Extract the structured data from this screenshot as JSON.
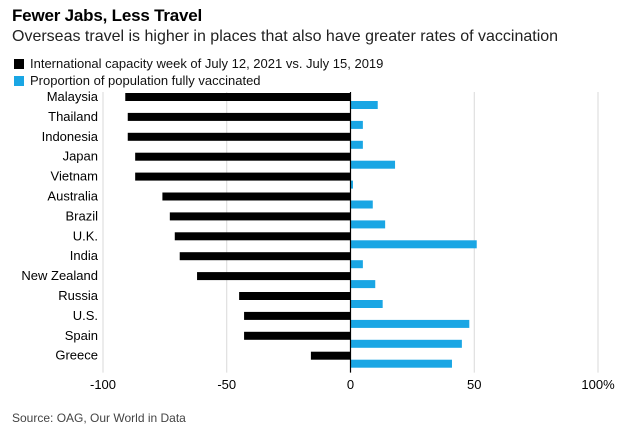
{
  "title": "Fewer Jabs, Less Travel",
  "subtitle": "Overseas travel is higher in places that also have greater rates of vaccination",
  "source": "Source: OAG, Our World in Data",
  "colors": {
    "capacity": "#000000",
    "vaccinated": "#1aa6e4",
    "grid": "#d9d9d9",
    "axis": "#000000"
  },
  "chart_data": {
    "type": "bar",
    "orientation": "horizontal",
    "categories": [
      "Malaysia",
      "Thailand",
      "Indonesia",
      "Japan",
      "Vietnam",
      "Australia",
      "Brazil",
      "U.K.",
      "India",
      "New Zealand",
      "Russia",
      "U.S.",
      "Spain",
      "Greece"
    ],
    "series": [
      {
        "name": "International capacity week of July 12, 2021 vs. July 15, 2019",
        "values": [
          -91,
          -90,
          -90,
          -87,
          -87,
          -76,
          -73,
          -71,
          -69,
          -62,
          -45,
          -43,
          -43,
          -16
        ]
      },
      {
        "name": "Proportion of population fully vaccinated",
        "values": [
          11,
          5,
          5,
          18,
          1,
          9,
          14,
          51,
          5,
          10,
          13,
          48,
          45,
          41
        ]
      }
    ],
    "xlim": [
      -100,
      100
    ],
    "xticks": [
      "-100",
      "-50",
      "0",
      "50",
      "100%"
    ],
    "grid": "vertical",
    "legend": "top-left"
  }
}
